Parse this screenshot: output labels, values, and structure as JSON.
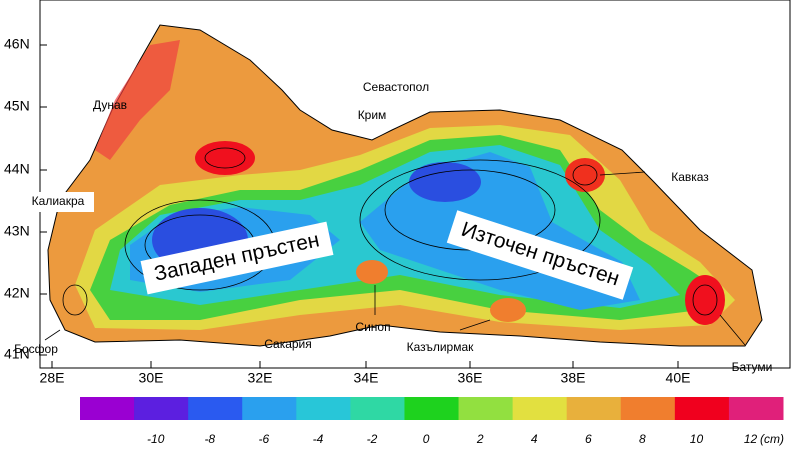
{
  "map": {
    "lat_labels": [
      "46N",
      "45N",
      "44N",
      "43N",
      "42N",
      "41N"
    ],
    "lon_labels": [
      "28E",
      "30E",
      "32E",
      "34E",
      "36E",
      "38E",
      "40E"
    ],
    "places": {
      "danube": "Дунав",
      "sevastopol": "Севастопол",
      "crimea": "Крим",
      "caucasus": "Кавказ",
      "kaliakra": "Калиакра",
      "sinop": "Синоп",
      "kizilirmak": "Казълирмак",
      "sakarya": "Сакария",
      "bosphorus": "Босфор",
      "batumi": "Батуми"
    },
    "rings": {
      "west": "Западен пръстен",
      "east": "Източен пръстен"
    }
  },
  "colorbar": {
    "colors": [
      "#9a00d2",
      "#5c1fe0",
      "#2a5af0",
      "#2aa0ee",
      "#28c6d8",
      "#2fd8a4",
      "#1ed21e",
      "#92e040",
      "#e2e040",
      "#e8b03c",
      "#f07e2e",
      "#f0001e",
      "#e0207a"
    ],
    "ticks": [
      -10,
      -8,
      -6,
      -4,
      -2,
      0,
      2,
      4,
      6,
      8,
      10,
      12
    ],
    "unit": "(cm)"
  }
}
